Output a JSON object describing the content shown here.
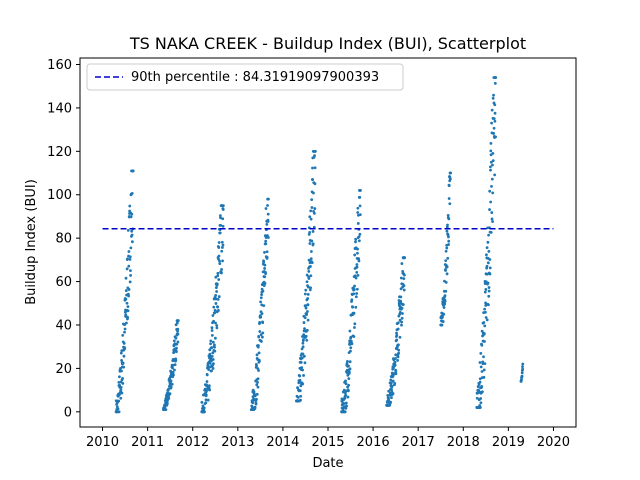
{
  "chart_data": {
    "type": "scatter",
    "title": "TS NAKA CREEK - Buildup Index (BUI), Scatterplot",
    "xlabel": "Date",
    "ylabel": "Buildup Index (BUI)",
    "xlim": [
      2009.5,
      2020.5
    ],
    "ylim": [
      -7,
      163
    ],
    "x_ticks": [
      "2010",
      "2011",
      "2012",
      "2013",
      "2014",
      "2015",
      "2016",
      "2017",
      "2018",
      "2019",
      "2020"
    ],
    "y_ticks": [
      0,
      20,
      40,
      60,
      80,
      100,
      120,
      140,
      160
    ],
    "point_color": "#1f77b4",
    "reference_line": {
      "label": "90th percentile : 84.31919097900393",
      "value": 84.31919097900393,
      "x_range": [
        2010,
        2020
      ],
      "color": "#0000cc",
      "style": "dashed"
    },
    "legend_position": "top-left",
    "grid": false,
    "seasons": [
      {
        "start": 2010.3,
        "end": 2010.68,
        "min_bui": 0,
        "max_bui": 111
      },
      {
        "start": 2011.35,
        "end": 2011.68,
        "min_bui": 1,
        "max_bui": 42
      },
      {
        "start": 2012.2,
        "end": 2012.68,
        "min_bui": 0,
        "max_bui": 95
      },
      {
        "start": 2013.3,
        "end": 2013.68,
        "min_bui": 1,
        "max_bui": 98
      },
      {
        "start": 2014.3,
        "end": 2014.72,
        "min_bui": 5,
        "max_bui": 120
      },
      {
        "start": 2015.3,
        "end": 2015.72,
        "min_bui": 0,
        "max_bui": 102
      },
      {
        "start": 2016.3,
        "end": 2016.7,
        "min_bui": 3,
        "max_bui": 71
      },
      {
        "start": 2017.5,
        "end": 2017.72,
        "min_bui": 40,
        "max_bui": 110
      },
      {
        "start": 2018.3,
        "end": 2018.72,
        "min_bui": 2,
        "max_bui": 154
      },
      {
        "start": 2019.28,
        "end": 2019.32,
        "min_bui": 14,
        "max_bui": 22
      }
    ]
  }
}
